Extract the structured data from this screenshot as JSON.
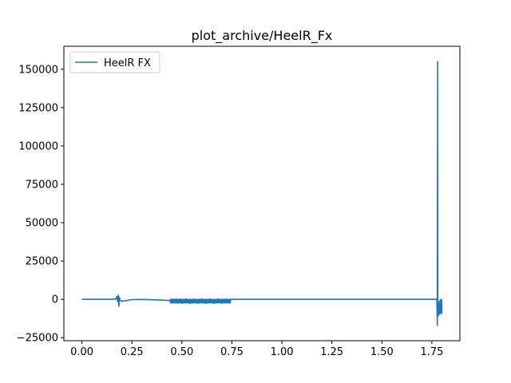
{
  "chart_data": {
    "type": "line",
    "title": "plot_archive/HeelR_Fx",
    "xlabel": "",
    "ylabel": "",
    "xlim": [
      -0.09,
      1.89
    ],
    "ylim": [
      -27000,
      165000
    ],
    "x_ticks": [
      0.0,
      0.25,
      0.5,
      0.75,
      1.0,
      1.25,
      1.5,
      1.75
    ],
    "x_tick_labels": [
      "0.00",
      "0.25",
      "0.50",
      "0.75",
      "1.00",
      "1.25",
      "1.50",
      "1.75"
    ],
    "y_ticks": [
      -25000,
      0,
      25000,
      50000,
      75000,
      100000,
      125000,
      150000
    ],
    "y_tick_labels": [
      "−25000",
      "0",
      "25000",
      "50000",
      "75000",
      "100000",
      "125000",
      "150000"
    ],
    "grid": false,
    "legend_position": "top-left",
    "series": [
      {
        "name": "HeelR FX",
        "color": "#1f77b4",
        "points": [
          [
            0.0,
            0
          ],
          [
            0.05,
            0
          ],
          [
            0.1,
            0
          ],
          [
            0.15,
            0
          ],
          [
            0.17,
            200
          ],
          [
            0.175,
            1800
          ],
          [
            0.178,
            -1200
          ],
          [
            0.182,
            2600
          ],
          [
            0.185,
            -4500
          ],
          [
            0.188,
            1200
          ],
          [
            0.19,
            -600
          ],
          [
            0.2,
            -1200
          ],
          [
            0.22,
            -900
          ],
          [
            0.25,
            -200
          ],
          [
            0.3,
            -100
          ],
          [
            0.35,
            -300
          ],
          [
            0.4,
            -500
          ],
          [
            0.44,
            -800
          ],
          [
            0.445,
            -2000
          ],
          [
            0.45,
            200
          ],
          [
            0.46,
            -2200
          ],
          [
            0.47,
            300
          ],
          [
            0.48,
            -2500
          ],
          [
            0.49,
            200
          ],
          [
            0.5,
            -2600
          ],
          [
            0.52,
            300
          ],
          [
            0.54,
            -2700
          ],
          [
            0.56,
            200
          ],
          [
            0.58,
            -2600
          ],
          [
            0.6,
            300
          ],
          [
            0.62,
            -2700
          ],
          [
            0.64,
            200
          ],
          [
            0.66,
            -2600
          ],
          [
            0.68,
            300
          ],
          [
            0.7,
            -2500
          ],
          [
            0.72,
            200
          ],
          [
            0.74,
            -2400
          ],
          [
            0.745,
            0
          ],
          [
            0.8,
            0
          ],
          [
            1.0,
            0
          ],
          [
            1.25,
            0
          ],
          [
            1.5,
            0
          ],
          [
            1.7,
            0
          ],
          [
            1.775,
            0
          ],
          [
            1.777,
            -17000
          ],
          [
            1.779,
            155000
          ],
          [
            1.7795,
            -3000
          ],
          [
            1.781,
            -11000
          ],
          [
            1.783,
            -2000
          ],
          [
            1.786,
            -10000
          ],
          [
            1.789,
            -1000
          ],
          [
            1.792,
            -9000
          ],
          [
            1.795,
            0
          ],
          [
            1.797,
            -9500
          ],
          [
            1.799,
            -200
          ],
          [
            1.8,
            -9000
          ]
        ]
      }
    ]
  }
}
